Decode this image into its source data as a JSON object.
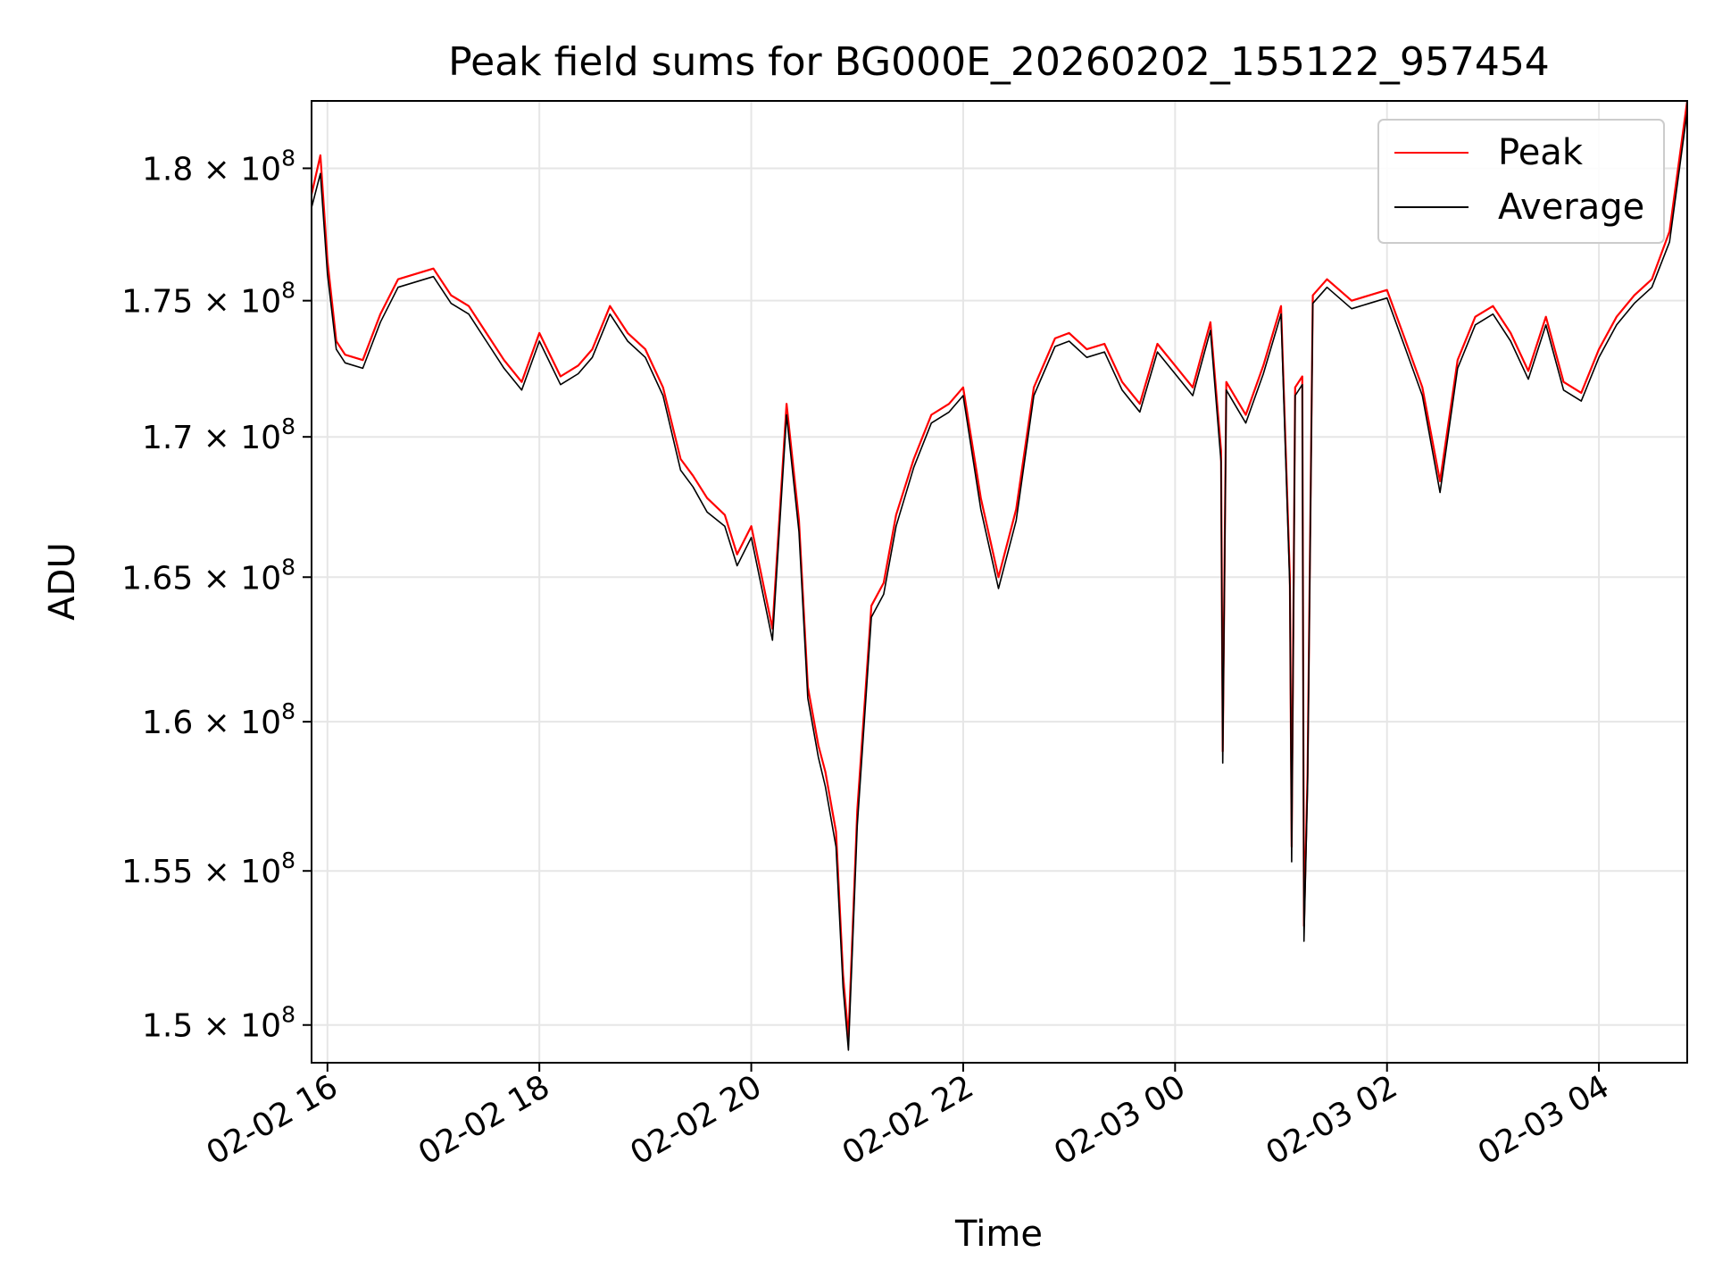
{
  "chart_data": {
    "type": "line",
    "title": "Peak field sums for BG000E_20260202_155122_957454",
    "xlabel": "Time",
    "ylabel": "ADU",
    "yscale": "log",
    "ylim": [
      148800000,
      182600000
    ],
    "xlim": [
      "2026-02-02 15:51",
      "2026-02-03 04:50"
    ],
    "grid": true,
    "legend_position": "upper right",
    "x_ticks": [
      "2026-02-02 16:00",
      "2026-02-02 18:00",
      "2026-02-02 20:00",
      "2026-02-02 22:00",
      "2026-02-03 00:00",
      "2026-02-03 02:00",
      "2026-02-03 04:00"
    ],
    "x_tick_labels": [
      "02-02 16",
      "02-02 18",
      "02-02 20",
      "02-02 22",
      "02-03 00",
      "02-03 02",
      "02-03 04"
    ],
    "y_ticks": [
      150000000,
      155000000,
      160000000,
      165000000,
      170000000,
      175000000,
      180000000
    ],
    "y_tick_mantissas": [
      "1.5",
      "1.55",
      "1.6",
      "1.65",
      "1.7",
      "1.75",
      "1.8"
    ],
    "y_tick_exponent_base": "10",
    "y_tick_exponent": "8",
    "series": [
      {
        "name": "Peak",
        "color": "#ff0000",
        "x": [
          "2026-02-02 15:51",
          "2026-02-02 15:56",
          "2026-02-02 16:00",
          "2026-02-02 16:05",
          "2026-02-02 16:10",
          "2026-02-02 16:20",
          "2026-02-02 16:30",
          "2026-02-02 16:40",
          "2026-02-02 16:50",
          "2026-02-02 17:00",
          "2026-02-02 17:10",
          "2026-02-02 17:20",
          "2026-02-02 17:30",
          "2026-02-02 17:40",
          "2026-02-02 17:50",
          "2026-02-02 18:00",
          "2026-02-02 18:12",
          "2026-02-02 18:22",
          "2026-02-02 18:30",
          "2026-02-02 18:40",
          "2026-02-02 18:50",
          "2026-02-02 19:00",
          "2026-02-02 19:10",
          "2026-02-02 19:20",
          "2026-02-02 19:27",
          "2026-02-02 19:35",
          "2026-02-02 19:45",
          "2026-02-02 19:52",
          "2026-02-02 20:00",
          "2026-02-02 20:12",
          "2026-02-02 20:20",
          "2026-02-02 20:27",
          "2026-02-02 20:32",
          "2026-02-02 20:38",
          "2026-02-02 20:42",
          "2026-02-02 20:48",
          "2026-02-02 20:52",
          "2026-02-02 20:55",
          "2026-02-02 21:00",
          "2026-02-02 21:08",
          "2026-02-02 21:15",
          "2026-02-02 21:22",
          "2026-02-02 21:32",
          "2026-02-02 21:42",
          "2026-02-02 21:52",
          "2026-02-02 22:00",
          "2026-02-02 22:10",
          "2026-02-02 22:20",
          "2026-02-02 22:30",
          "2026-02-02 22:40",
          "2026-02-02 22:52",
          "2026-02-02 23:00",
          "2026-02-02 23:10",
          "2026-02-02 23:20",
          "2026-02-02 23:30",
          "2026-02-02 23:40",
          "2026-02-02 23:50",
          "2026-02-03 00:00",
          "2026-02-03 00:10",
          "2026-02-03 00:20",
          "2026-02-03 00:26",
          "2026-02-03 00:27",
          "2026-02-03 00:29",
          "2026-02-03 00:40",
          "2026-02-03 00:50",
          "2026-02-03 01:00",
          "2026-02-03 01:05",
          "2026-02-03 01:06",
          "2026-02-03 01:08",
          "2026-02-03 01:12",
          "2026-02-03 01:13",
          "2026-02-03 01:15",
          "2026-02-03 01:18",
          "2026-02-03 01:26",
          "2026-02-03 01:40",
          "2026-02-03 01:50",
          "2026-02-03 02:00",
          "2026-02-03 02:10",
          "2026-02-03 02:20",
          "2026-02-03 02:30",
          "2026-02-03 02:40",
          "2026-02-03 02:50",
          "2026-02-03 03:00",
          "2026-02-03 03:10",
          "2026-02-03 03:20",
          "2026-02-03 03:30",
          "2026-02-03 03:40",
          "2026-02-03 03:50",
          "2026-02-03 04:00",
          "2026-02-03 04:10",
          "2026-02-03 04:20",
          "2026-02-03 04:30",
          "2026-02-03 04:40",
          "2026-02-03 04:50"
        ],
        "values": [
          179000000,
          180500000,
          176500000,
          173500000,
          173000000,
          172800000,
          174500000,
          175800000,
          176000000,
          176200000,
          175200000,
          174800000,
          173800000,
          172800000,
          172000000,
          173800000,
          172200000,
          172600000,
          173200000,
          174800000,
          173800000,
          173200000,
          171800000,
          169200000,
          168600000,
          167800000,
          167200000,
          165800000,
          166800000,
          163200000,
          171200000,
          167000000,
          161200000,
          159200000,
          158300000,
          156300000,
          151600000,
          149600000,
          157000000,
          164000000,
          164800000,
          167200000,
          169200000,
          170800000,
          171200000,
          171800000,
          167800000,
          165000000,
          167400000,
          171800000,
          173600000,
          173800000,
          173200000,
          173400000,
          172000000,
          171200000,
          173400000,
          172600000,
          171800000,
          174200000,
          169500000,
          159000000,
          172000000,
          170800000,
          172600000,
          174800000,
          165000000,
          155800000,
          171800000,
          172200000,
          153200000,
          158200000,
          175200000,
          175800000,
          175000000,
          175200000,
          175400000,
          173600000,
          171800000,
          168400000,
          172800000,
          174400000,
          174800000,
          173800000,
          172400000,
          174400000,
          172000000,
          171600000,
          173200000,
          174400000,
          175200000,
          175800000,
          177600000,
          182600000
        ]
      },
      {
        "name": "Average",
        "color": "#000000",
        "x": [
          "2026-02-02 15:51",
          "2026-02-02 15:56",
          "2026-02-02 16:00",
          "2026-02-02 16:05",
          "2026-02-02 16:10",
          "2026-02-02 16:20",
          "2026-02-02 16:30",
          "2026-02-02 16:40",
          "2026-02-02 16:50",
          "2026-02-02 17:00",
          "2026-02-02 17:10",
          "2026-02-02 17:20",
          "2026-02-02 17:30",
          "2026-02-02 17:40",
          "2026-02-02 17:50",
          "2026-02-02 18:00",
          "2026-02-02 18:12",
          "2026-02-02 18:22",
          "2026-02-02 18:30",
          "2026-02-02 18:40",
          "2026-02-02 18:50",
          "2026-02-02 19:00",
          "2026-02-02 19:10",
          "2026-02-02 19:20",
          "2026-02-02 19:27",
          "2026-02-02 19:35",
          "2026-02-02 19:45",
          "2026-02-02 19:52",
          "2026-02-02 20:00",
          "2026-02-02 20:12",
          "2026-02-02 20:20",
          "2026-02-02 20:27",
          "2026-02-02 20:32",
          "2026-02-02 20:38",
          "2026-02-02 20:42",
          "2026-02-02 20:48",
          "2026-02-02 20:52",
          "2026-02-02 20:55",
          "2026-02-02 21:00",
          "2026-02-02 21:08",
          "2026-02-02 21:15",
          "2026-02-02 21:22",
          "2026-02-02 21:32",
          "2026-02-02 21:42",
          "2026-02-02 21:52",
          "2026-02-02 22:00",
          "2026-02-02 22:10",
          "2026-02-02 22:20",
          "2026-02-02 22:30",
          "2026-02-02 22:40",
          "2026-02-02 22:52",
          "2026-02-02 23:00",
          "2026-02-02 23:10",
          "2026-02-02 23:20",
          "2026-02-02 23:30",
          "2026-02-02 23:40",
          "2026-02-02 23:50",
          "2026-02-03 00:00",
          "2026-02-03 00:10",
          "2026-02-03 00:20",
          "2026-02-03 00:26",
          "2026-02-03 00:27",
          "2026-02-03 00:29",
          "2026-02-03 00:40",
          "2026-02-03 00:50",
          "2026-02-03 01:00",
          "2026-02-03 01:05",
          "2026-02-03 01:06",
          "2026-02-03 01:08",
          "2026-02-03 01:12",
          "2026-02-03 01:13",
          "2026-02-03 01:15",
          "2026-02-03 01:18",
          "2026-02-03 01:26",
          "2026-02-03 01:40",
          "2026-02-03 01:50",
          "2026-02-03 02:00",
          "2026-02-03 02:10",
          "2026-02-03 02:20",
          "2026-02-03 02:30",
          "2026-02-03 02:40",
          "2026-02-03 02:50",
          "2026-02-03 03:00",
          "2026-02-03 03:10",
          "2026-02-03 03:20",
          "2026-02-03 03:30",
          "2026-02-03 03:40",
          "2026-02-03 03:50",
          "2026-02-03 04:00",
          "2026-02-03 04:10",
          "2026-02-03 04:20",
          "2026-02-03 04:30",
          "2026-02-03 04:40",
          "2026-02-03 04:50"
        ],
        "values": [
          178500000,
          179800000,
          176000000,
          173200000,
          172700000,
          172500000,
          174200000,
          175500000,
          175700000,
          175900000,
          174900000,
          174500000,
          173500000,
          172500000,
          171700000,
          173500000,
          171900000,
          172300000,
          172900000,
          174500000,
          173500000,
          172900000,
          171500000,
          168800000,
          168200000,
          167300000,
          166800000,
          165400000,
          166400000,
          162800000,
          170800000,
          166600000,
          160800000,
          158800000,
          157800000,
          155800000,
          151200000,
          149200000,
          156500000,
          163600000,
          164400000,
          166800000,
          168900000,
          170500000,
          170900000,
          171500000,
          167400000,
          164600000,
          167000000,
          171500000,
          173300000,
          173500000,
          172900000,
          173100000,
          171700000,
          170900000,
          173100000,
          172300000,
          171500000,
          173900000,
          169100000,
          158600000,
          171700000,
          170500000,
          172300000,
          174500000,
          164600000,
          155300000,
          171500000,
          171900000,
          152700000,
          157800000,
          174900000,
          175500000,
          174700000,
          174900000,
          175100000,
          173300000,
          171500000,
          168000000,
          172500000,
          174100000,
          174500000,
          173500000,
          172100000,
          174100000,
          171700000,
          171300000,
          172900000,
          174100000,
          174900000,
          175500000,
          177200000,
          182200000
        ]
      }
    ]
  }
}
